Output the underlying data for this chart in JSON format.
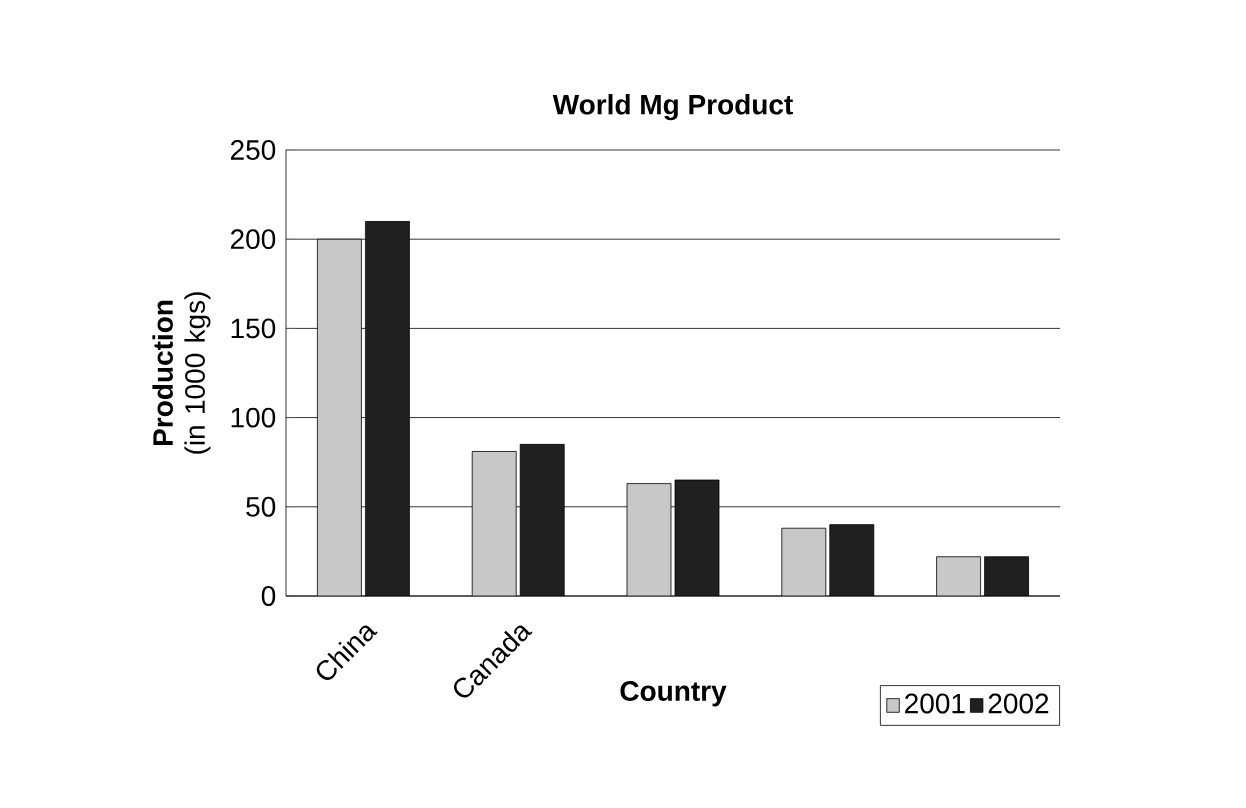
{
  "chart_data": {
    "type": "bar",
    "title": "World Mg Product",
    "xlabel": "Country",
    "ylabel": "**Production** (in 1000 kgs)",
    "categories": [
      "China",
      "Canada",
      null,
      null,
      null
    ],
    "series": [
      {
        "name": "2001",
        "color": "#c8c8c8",
        "values": [
          200,
          81,
          63,
          38,
          22
        ]
      },
      {
        "name": "2002",
        "color": "#202020",
        "values": [
          210,
          85,
          65,
          40,
          22
        ]
      }
    ],
    "ylim": [
      0,
      250
    ],
    "yticks": [
      0,
      50,
      100,
      150,
      200,
      250
    ],
    "grid": "y",
    "legend": "bottom right"
  }
}
